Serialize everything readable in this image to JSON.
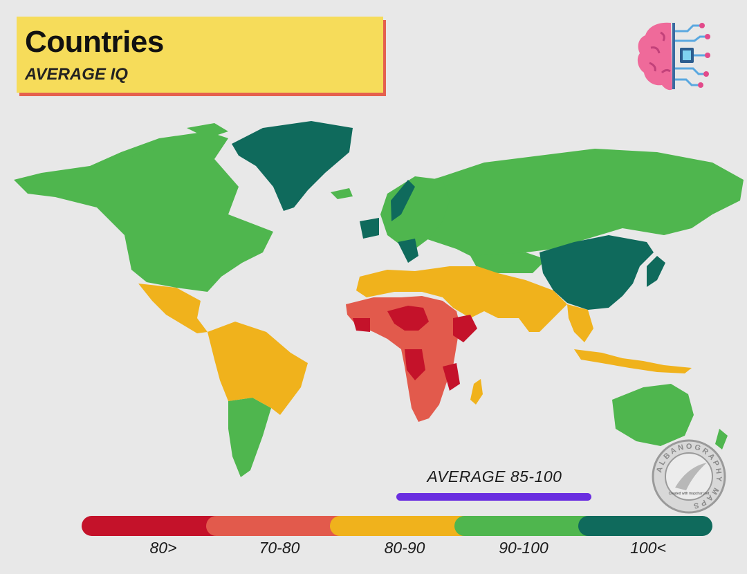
{
  "header": {
    "title": "Countries",
    "subtitle": "AVERAGE IQ"
  },
  "seal": {
    "circle_text": "ALBANOGRAPHY MAPS",
    "credit": "Created with mapchart.net"
  },
  "average": {
    "label": "AVERAGE 85-100",
    "color": "#6a2ee0"
  },
  "legend": {
    "items": [
      {
        "label": "80>",
        "color": "#c4122a"
      },
      {
        "label": "70-80",
        "color": "#e25a4c"
      },
      {
        "label": "80-90",
        "color": "#f0b21c"
      },
      {
        "label": "90-100",
        "color": "#4fb64e"
      },
      {
        "label": "100<",
        "color": "#0f6a5c"
      }
    ]
  },
  "icons": [
    "brain-chip-icon",
    "seal-logo-icon"
  ]
}
